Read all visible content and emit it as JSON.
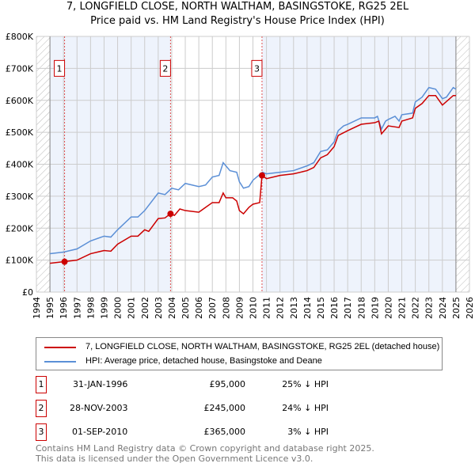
{
  "chart_data": {
    "type": "line",
    "title": "7, LONGFIELD CLOSE, NORTH WALTHAM, BASINGSTOKE, RG25 2EL",
    "subtitle": "Price paid vs. HM Land Registry's House Price Index (HPI)",
    "xlim": [
      1994,
      2026
    ],
    "ylim": [
      0,
      800000
    ],
    "x_ticks": [
      "1994",
      "1995",
      "1996",
      "1997",
      "1998",
      "1999",
      "2000",
      "2001",
      "2002",
      "2003",
      "2004",
      "2005",
      "2006",
      "2007",
      "2008",
      "2009",
      "2010",
      "2011",
      "2012",
      "2013",
      "2014",
      "2015",
      "2016",
      "2017",
      "2018",
      "2019",
      "2020",
      "2021",
      "2022",
      "2023",
      "2024",
      "2025",
      "2026"
    ],
    "y_ticks": [
      {
        "v": 0,
        "l": "£0"
      },
      {
        "v": 100000,
        "l": "£100K"
      },
      {
        "v": 200000,
        "l": "£200K"
      },
      {
        "v": 300000,
        "l": "£300K"
      },
      {
        "v": 400000,
        "l": "£400K"
      },
      {
        "v": 500000,
        "l": "£500K"
      },
      {
        "v": 600000,
        "l": "£600K"
      },
      {
        "v": 700000,
        "l": "£700K"
      },
      {
        "v": 800000,
        "l": "£800K"
      }
    ],
    "grid": true,
    "series": [
      {
        "name": "7, LONGFIELD CLOSE, NORTH WALTHAM, BASINGSTOKE, RG25 2EL (detached house)",
        "color": "#cc0000",
        "points": [
          [
            1995,
            90
          ],
          [
            1996,
            95
          ],
          [
            1997,
            100
          ],
          [
            1998,
            120
          ],
          [
            1999,
            130
          ],
          [
            1999.5,
            128
          ],
          [
            2000,
            150
          ],
          [
            2001,
            175
          ],
          [
            2001.5,
            175
          ],
          [
            2002,
            195
          ],
          [
            2002.3,
            190
          ],
          [
            2003,
            230
          ],
          [
            2003.5,
            232
          ],
          [
            2003.9,
            245
          ],
          [
            2004.2,
            240
          ],
          [
            2004.6,
            260
          ],
          [
            2005,
            255
          ],
          [
            2006,
            250
          ],
          [
            2006.5,
            265
          ],
          [
            2007,
            280
          ],
          [
            2007.5,
            280
          ],
          [
            2007.8,
            310
          ],
          [
            2008,
            295
          ],
          [
            2008.5,
            295
          ],
          [
            2008.8,
            285
          ],
          [
            2009,
            255
          ],
          [
            2009.3,
            245
          ],
          [
            2009.7,
            265
          ],
          [
            2010,
            275
          ],
          [
            2010.5,
            280
          ],
          [
            2010.67,
            365
          ],
          [
            2011,
            355
          ],
          [
            2012,
            365
          ],
          [
            2013,
            370
          ],
          [
            2014,
            380
          ],
          [
            2014.5,
            390
          ],
          [
            2015,
            420
          ],
          [
            2015.5,
            430
          ],
          [
            2016,
            455
          ],
          [
            2016.3,
            490
          ],
          [
            2017,
            505
          ],
          [
            2018,
            525
          ],
          [
            2019,
            530
          ],
          [
            2019.3,
            535
          ],
          [
            2019.5,
            495
          ],
          [
            2020,
            520
          ],
          [
            2020.8,
            515
          ],
          [
            2021,
            535
          ],
          [
            2021.8,
            545
          ],
          [
            2022,
            575
          ],
          [
            2022.5,
            590
          ],
          [
            2023,
            615
          ],
          [
            2023.5,
            615
          ],
          [
            2024,
            585
          ],
          [
            2024.8,
            615
          ],
          [
            2025,
            615
          ]
        ]
      },
      {
        "name": "HPI: Average price, detached house, Basingstoke and Deane",
        "color": "#5b8fd6",
        "points": [
          [
            1995,
            120
          ],
          [
            1996,
            125
          ],
          [
            1997,
            135
          ],
          [
            1998,
            160
          ],
          [
            1999,
            175
          ],
          [
            1999.5,
            172
          ],
          [
            2000,
            195
          ],
          [
            2001,
            235
          ],
          [
            2001.5,
            235
          ],
          [
            2002,
            255
          ],
          [
            2003,
            310
          ],
          [
            2003.5,
            305
          ],
          [
            2004,
            325
          ],
          [
            2004.5,
            320
          ],
          [
            2005,
            340
          ],
          [
            2006,
            330
          ],
          [
            2006.5,
            335
          ],
          [
            2007,
            360
          ],
          [
            2007.5,
            365
          ],
          [
            2007.8,
            405
          ],
          [
            2008,
            395
          ],
          [
            2008.3,
            380
          ],
          [
            2008.8,
            375
          ],
          [
            2009,
            345
          ],
          [
            2009.3,
            325
          ],
          [
            2009.7,
            330
          ],
          [
            2010,
            350
          ],
          [
            2010.7,
            375
          ],
          [
            2011,
            370
          ],
          [
            2012,
            375
          ],
          [
            2013,
            380
          ],
          [
            2014,
            395
          ],
          [
            2014.5,
            405
          ],
          [
            2015,
            440
          ],
          [
            2015.5,
            445
          ],
          [
            2016,
            470
          ],
          [
            2016.3,
            505
          ],
          [
            2016.7,
            520
          ],
          [
            2017,
            525
          ],
          [
            2018,
            545
          ],
          [
            2019,
            545
          ],
          [
            2019.2,
            550
          ],
          [
            2019.5,
            510
          ],
          [
            2019.8,
            535
          ],
          [
            2020,
            540
          ],
          [
            2020.5,
            550
          ],
          [
            2020.8,
            535
          ],
          [
            2021,
            555
          ],
          [
            2021.8,
            560
          ],
          [
            2022,
            595
          ],
          [
            2022.5,
            610
          ],
          [
            2023,
            640
          ],
          [
            2023.5,
            635
          ],
          [
            2024,
            605
          ],
          [
            2024.3,
            610
          ],
          [
            2024.8,
            640
          ],
          [
            2025,
            635
          ]
        ]
      }
    ],
    "sales": [
      {
        "id": "1",
        "x": 1996.08,
        "price": 95000,
        "date": "31-JAN-1996",
        "price_label": "£95,000",
        "hpi": "25% ↓ HPI"
      },
      {
        "id": "2",
        "x": 2003.91,
        "price": 245000,
        "date": "28-NOV-2003",
        "price_label": "£245,000",
        "hpi": "24% ↓ HPI"
      },
      {
        "id": "3",
        "x": 2010.67,
        "price": 365000,
        "date": "01-SEP-2010",
        "price_label": "£365,000",
        "hpi": "3% ↓ HPI"
      }
    ]
  },
  "footer": [
    "Contains HM Land Registry data © Crown copyright and database right 2025.",
    "This data is licensed under the Open Government Licence v3.0."
  ]
}
